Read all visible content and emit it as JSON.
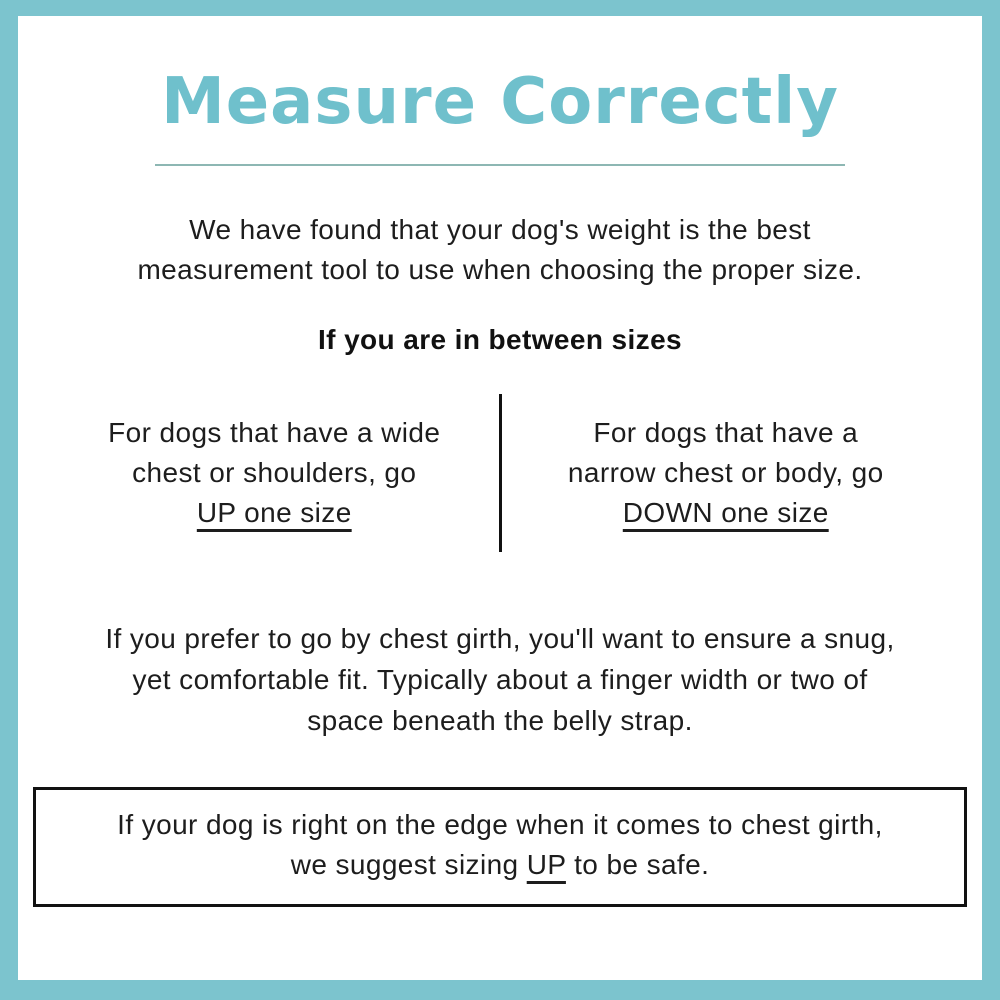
{
  "title": "Measure Correctly",
  "intro": {
    "lines": [
      "We have found that your dog's weight is the best",
      "measurement tool to use when choosing the proper size."
    ]
  },
  "between_heading": "If you are in between sizes",
  "columns": {
    "left": {
      "lines": [
        "For dogs that have a wide",
        "chest or shoulders, go"
      ],
      "emphasis": "UP one size"
    },
    "right": {
      "lines": [
        "For dogs that have a",
        "narrow chest or body, go"
      ],
      "emphasis": "DOWN one size"
    }
  },
  "girth": {
    "lines": [
      "If you prefer to go by chest girth, you'll want to ensure a snug,",
      "yet comfortable fit. Typically about a finger width or two of",
      "space beneath the belly strap."
    ]
  },
  "note_box": {
    "line1": "If your dog is right on the edge when it comes to chest girth,",
    "line2_before": "we suggest sizing",
    "line2_emphasis": "UP",
    "line2_after": "to be safe."
  },
  "colors": {
    "accent_teal": "#7cc4ce",
    "title_teal": "#6fc0cc",
    "divider_teal": "#8db7b3",
    "text_black": "#1d1d1d",
    "box_border_black": "#111111"
  }
}
